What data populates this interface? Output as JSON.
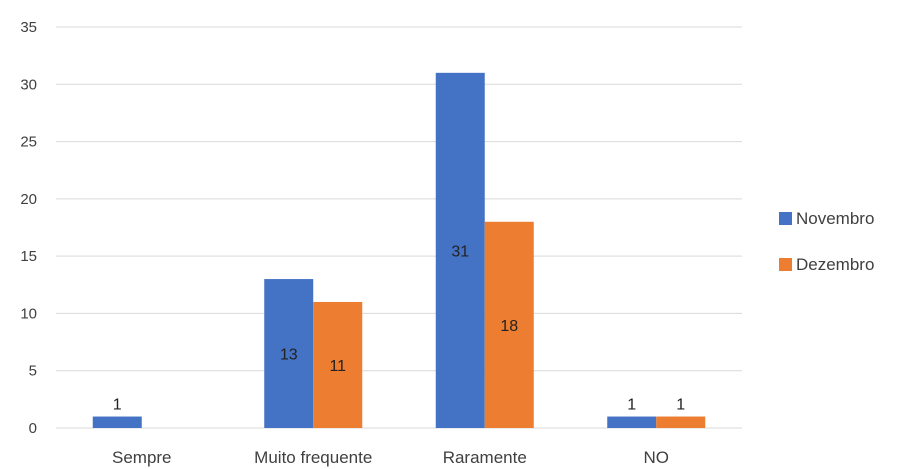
{
  "chart_data": {
    "type": "bar",
    "title": "",
    "xlabel": "",
    "ylabel": "",
    "categories": [
      "Sempre",
      "Muito frequente",
      "Raramente",
      "NO"
    ],
    "series": [
      {
        "name": "Novembro",
        "values": [
          1,
          13,
          31,
          1
        ],
        "color": "#4472C4"
      },
      {
        "name": "Dezembro",
        "values": [
          null,
          11,
          18,
          1
        ],
        "color": "#ED7D31"
      }
    ],
    "ylim": [
      0,
      35
    ],
    "yticks": [
      0,
      5,
      10,
      15,
      20,
      25,
      30,
      35
    ],
    "grid": true,
    "legend_position": "right"
  }
}
